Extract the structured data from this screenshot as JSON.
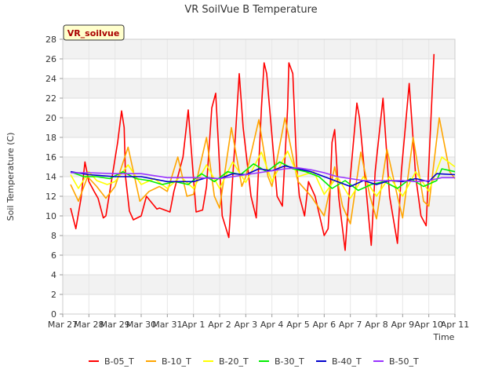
{
  "chart_data": {
    "type": "line",
    "title": "VR SoilVue B Temperature",
    "xlabel": "Time",
    "ylabel": "Soil Temperature (C)",
    "annotation": "VR_soilvue",
    "ylim": [
      0,
      28
    ],
    "yticks": [
      0,
      2,
      4,
      6,
      8,
      10,
      12,
      14,
      16,
      18,
      20,
      22,
      24,
      26,
      28
    ],
    "xlim": [
      0,
      15
    ],
    "x_unit": "days since Mar 27",
    "xtick_labels": [
      "Mar 27",
      "Mar 28",
      "Mar 29",
      "Mar 30",
      "Mar 31",
      "Apr 1",
      "Apr 2",
      "Apr 3",
      "Apr 4",
      "Apr 5",
      "Apr 6",
      "Apr 7",
      "Apr 8",
      "Apr 9",
      "Apr 10",
      "Apr 11"
    ],
    "grid": true,
    "legend_position": "bottom",
    "series": [
      {
        "name": "B-05_T",
        "color": "#ff0000",
        "x": [
          0.3,
          0.5,
          0.7,
          0.85,
          1.0,
          1.2,
          1.35,
          1.55,
          1.65,
          2.1,
          2.25,
          2.35,
          2.4,
          2.55,
          2.7,
          3.0,
          3.2,
          3.6,
          3.7,
          4.1,
          4.25,
          4.35,
          4.6,
          4.8,
          5.1,
          5.35,
          5.5,
          5.7,
          5.85,
          6.1,
          6.35,
          6.6,
          6.75,
          6.9,
          7.2,
          7.4,
          7.6,
          7.7,
          7.8,
          8.2,
          8.4,
          8.6,
          8.65,
          8.8,
          8.95,
          9.05,
          9.25,
          9.4,
          9.65,
          10.0,
          10.15,
          10.2,
          10.3,
          10.4,
          10.55,
          10.8,
          11.0,
          11.25,
          11.35,
          11.8,
          11.95,
          12.25,
          12.5,
          12.8,
          12.95,
          13.25,
          13.5,
          13.7,
          13.9,
          14.05,
          14.2
        ],
        "y": [
          10.8,
          8.7,
          11.8,
          15.5,
          13.5,
          12.5,
          11.8,
          9.8,
          10.0,
          17.5,
          20.7,
          19.0,
          14.0,
          10.5,
          9.6,
          10.0,
          12.0,
          10.7,
          10.8,
          10.4,
          12.5,
          13.5,
          16.0,
          20.8,
          10.4,
          10.6,
          13.0,
          21.0,
          22.5,
          10.0,
          7.8,
          18.0,
          24.5,
          19.0,
          12.0,
          9.8,
          21.0,
          25.6,
          24.5,
          12.0,
          11.0,
          21.0,
          25.6,
          24.5,
          15.0,
          12.0,
          10.0,
          13.5,
          12.0,
          8.0,
          8.7,
          11.0,
          17.5,
          18.8,
          12.0,
          6.5,
          14.0,
          21.5,
          20.0,
          7.0,
          14.5,
          22.0,
          12.0,
          7.2,
          14.5,
          23.5,
          14.0,
          10.0,
          9.0,
          18.0,
          26.5
        ]
      },
      {
        "name": "B-10_T",
        "color": "#ffa500",
        "x": [
          0.3,
          0.6,
          0.95,
          1.3,
          1.65,
          2.0,
          2.5,
          2.95,
          3.3,
          3.7,
          4.0,
          4.4,
          4.75,
          5.0,
          5.5,
          5.8,
          6.0,
          6.45,
          6.85,
          7.0,
          7.5,
          7.85,
          8.0,
          8.5,
          8.95,
          9.0,
          9.5,
          10.0,
          10.4,
          10.7,
          11.0,
          11.4,
          11.75,
          12.0,
          12.4,
          12.8,
          13.0,
          13.4,
          13.8,
          14.0,
          14.4,
          14.8,
          15.0
        ],
        "y": [
          13.2,
          11.5,
          14.0,
          13.0,
          11.8,
          13.0,
          17.0,
          11.5,
          12.5,
          13.0,
          12.5,
          16.0,
          12.0,
          12.2,
          18.0,
          12.0,
          10.8,
          19.0,
          13.0,
          14.0,
          19.8,
          14.0,
          13.0,
          20.0,
          14.0,
          13.5,
          12.0,
          10.0,
          15.0,
          11.0,
          9.2,
          16.5,
          12.0,
          9.7,
          16.8,
          12.0,
          9.8,
          18.0,
          11.5,
          11.0,
          20.0,
          14.5,
          13.8
        ]
      },
      {
        "name": "B-20_T",
        "color": "#ffff00",
        "x": [
          0.3,
          0.6,
          1.0,
          1.3,
          1.7,
          2.0,
          2.5,
          3.0,
          3.5,
          4.0,
          4.5,
          5.0,
          5.5,
          6.0,
          6.5,
          7.0,
          7.6,
          8.0,
          8.6,
          9.0,
          9.6,
          10.0,
          10.5,
          11.0,
          11.5,
          12.0,
          12.5,
          13.0,
          13.5,
          14.0,
          14.5,
          15.0
        ],
        "y": [
          14.2,
          12.8,
          14.5,
          13.6,
          13.2,
          13.5,
          15.2,
          13.2,
          13.8,
          12.8,
          14.0,
          12.8,
          15.2,
          12.8,
          15.5,
          13.4,
          16.5,
          13.5,
          16.6,
          14.0,
          14.5,
          12.2,
          14.0,
          11.8,
          14.0,
          12.0,
          14.0,
          12.0,
          14.5,
          12.5,
          16.0,
          15.0
        ]
      },
      {
        "name": "B-30_T",
        "color": "#00ee00",
        "x": [
          0.3,
          0.8,
          1.3,
          1.8,
          2.3,
          2.8,
          3.3,
          3.8,
          4.3,
          4.8,
          5.3,
          5.8,
          6.3,
          6.8,
          7.3,
          7.8,
          8.3,
          8.8,
          9.3,
          9.8,
          10.3,
          10.8,
          11.3,
          11.8,
          12.3,
          12.8,
          13.3,
          13.8,
          14.3,
          14.5,
          15.0
        ],
        "y": [
          14.5,
          14.0,
          14.0,
          13.8,
          14.5,
          13.8,
          13.6,
          13.2,
          13.5,
          13.2,
          14.3,
          13.5,
          14.5,
          14.2,
          15.3,
          14.5,
          15.5,
          14.8,
          14.5,
          14.0,
          12.8,
          13.6,
          12.6,
          13.2,
          13.5,
          12.8,
          13.8,
          13.0,
          13.6,
          14.8,
          14.5
        ]
      },
      {
        "name": "B-40_T",
        "color": "#0000cc",
        "x": [
          0.3,
          1.0,
          2.0,
          3.0,
          4.0,
          5.0,
          5.5,
          6.0,
          6.5,
          7.0,
          7.5,
          8.0,
          8.5,
          9.0,
          9.5,
          10.0,
          10.5,
          11.0,
          11.5,
          12.0,
          12.5,
          13.0,
          13.5,
          14.0,
          14.3,
          15.0
        ],
        "y": [
          14.5,
          14.2,
          14.0,
          14.0,
          13.5,
          13.5,
          13.9,
          13.8,
          14.3,
          14.2,
          14.8,
          14.6,
          15.1,
          14.8,
          14.5,
          14.0,
          13.5,
          13.0,
          13.6,
          13.2,
          13.6,
          13.5,
          13.8,
          13.5,
          14.3,
          14.2
        ]
      },
      {
        "name": "B-50_T",
        "color": "#9933ff",
        "x": [
          0.3,
          1.0,
          2.0,
          3.0,
          4.0,
          5.0,
          6.0,
          7.0,
          8.0,
          8.5,
          9.0,
          9.5,
          10.0,
          10.5,
          11.0,
          11.5,
          12.0,
          12.5,
          13.0,
          13.5,
          14.0,
          14.5,
          15.0
        ],
        "y": [
          14.4,
          14.4,
          14.3,
          14.3,
          13.9,
          13.9,
          13.8,
          14.2,
          14.6,
          14.8,
          14.9,
          14.7,
          14.4,
          14.0,
          13.8,
          13.6,
          13.6,
          13.6,
          13.6,
          13.5,
          13.6,
          13.9,
          13.9
        ]
      }
    ]
  }
}
